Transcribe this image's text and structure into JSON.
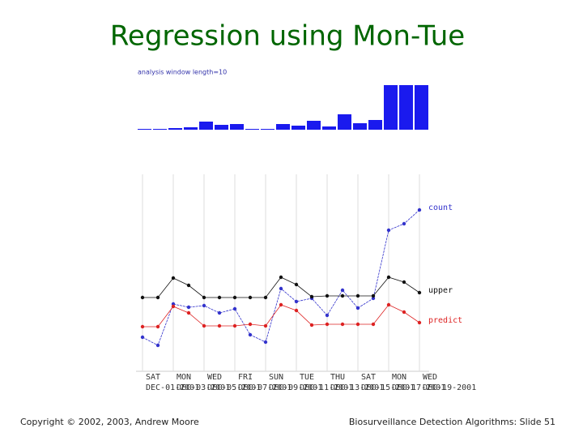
{
  "slide_title": "Regression using Mon-Tue",
  "footer": {
    "left": "Copyright © 2002, 2003, Andrew Moore",
    "right": "Biosurveillance Detection Algorithms: Slide 51"
  },
  "chart_data": [
    {
      "type": "bar",
      "title": "analysis window length=10",
      "color": "#1a1aee",
      "values": [
        1,
        0,
        2,
        3,
        10,
        6,
        7,
        0,
        0,
        7,
        5,
        11,
        4,
        19,
        8,
        12,
        55,
        55,
        55
      ]
    },
    {
      "type": "line",
      "grid": true,
      "ylim": [
        0,
        255
      ],
      "categories": [
        "SAT",
        null,
        "MON",
        null,
        "WED",
        null,
        "FRI",
        null,
        "SUN",
        null,
        "TUE",
        null,
        "THU",
        null,
        "SAT",
        null,
        "MON",
        null,
        "WED"
      ],
      "date_labels": [
        "DEC-01-2001",
        null,
        "DEC-03-2001",
        null,
        "DEC-05-2001",
        null,
        "DEC-07-2001",
        null,
        "DEC-09-2001",
        null,
        "DEC-11-2001",
        null,
        "DEC-13-2001",
        null,
        "DEC-15-2001",
        null,
        "DEC-17-2001",
        null,
        "DEC-19-2001"
      ],
      "series": [
        {
          "name": "count",
          "color": "#3333cc",
          "values": [
            54,
            44,
            95,
            91,
            93,
            84,
            89,
            57,
            48,
            114,
            98,
            102,
            81,
            112,
            90,
            102,
            186,
            194,
            211
          ]
        },
        {
          "name": "upper",
          "color": "#111111",
          "values": [
            103,
            103,
            127,
            118,
            103,
            103,
            103,
            103,
            103,
            128,
            119,
            104,
            105,
            105,
            105,
            105,
            128,
            122,
            109
          ]
        },
        {
          "name": "predict",
          "color": "#dd2222",
          "values": [
            67,
            67,
            92,
            84,
            68,
            68,
            68,
            70,
            68,
            94,
            87,
            69,
            70,
            70,
            70,
            70,
            94,
            85,
            72
          ]
        }
      ]
    }
  ]
}
